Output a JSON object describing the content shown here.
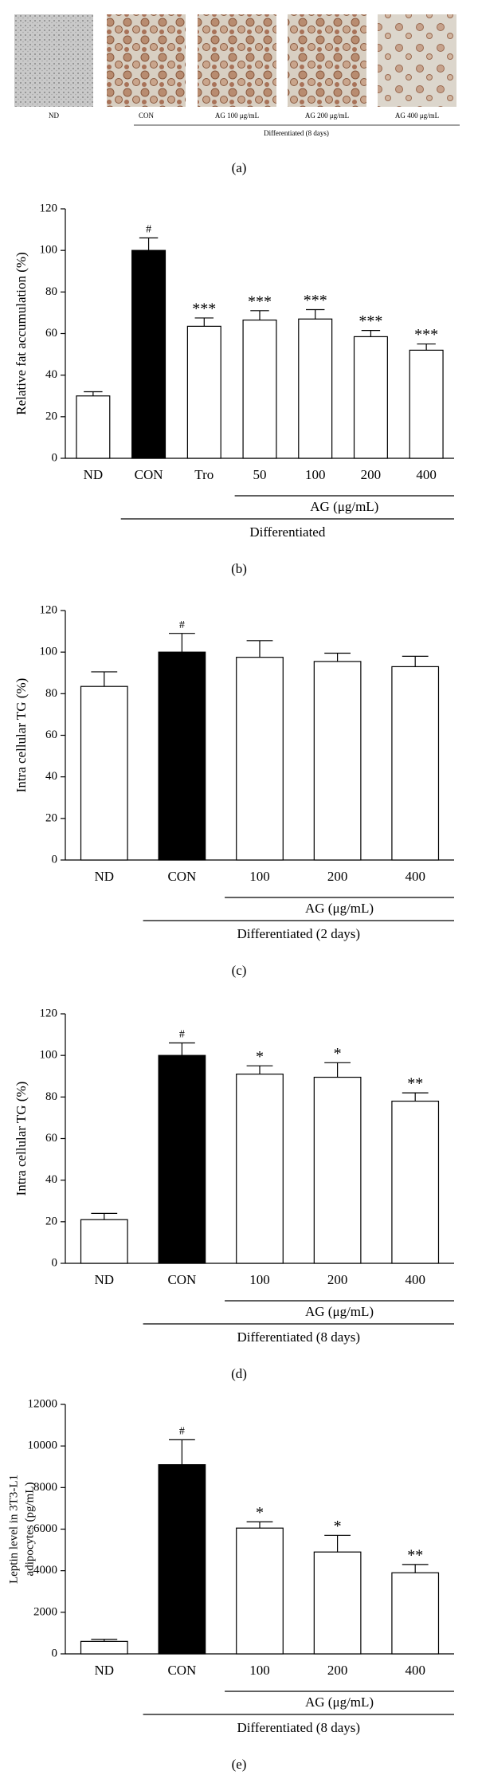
{
  "panel_a": {
    "images": [
      "ND",
      "CON",
      "AG 100 μg/mL",
      "AG 200 μg/mL",
      "AG 400 μg/mL"
    ],
    "group_label": "Differentiated (8 days)",
    "caption": "(a)"
  },
  "chart_data": [
    {
      "type": "bar",
      "caption": "(b)",
      "y_label": [
        "Relative fat accumulation (%)"
      ],
      "categories": [
        "ND",
        "CON",
        "Tro",
        "50",
        "100",
        "200",
        "400"
      ],
      "values": [
        30,
        100,
        63.5,
        66.5,
        67,
        58.5,
        52
      ],
      "errors": [
        2,
        6,
        4,
        4.5,
        4.5,
        3,
        3
      ],
      "colors": [
        "#ffffff",
        "#000000",
        "#ffffff",
        "#ffffff",
        "#ffffff",
        "#ffffff",
        "#ffffff"
      ],
      "annotations": [
        null,
        "#",
        "***",
        "***",
        "***",
        "***",
        "***"
      ],
      "groups": [
        "AG (μg/mL)",
        "Differentiated"
      ],
      "ylim": [
        0,
        120
      ],
      "yticks": [
        0,
        20,
        40,
        60,
        80,
        100,
        120
      ]
    },
    {
      "type": "bar",
      "caption": "(c)",
      "y_label": [
        "Intra cellular TG (%)"
      ],
      "categories": [
        "ND",
        "CON",
        "100",
        "200",
        "400"
      ],
      "values": [
        83.5,
        100,
        97.5,
        95.5,
        93
      ],
      "errors": [
        7,
        9,
        8,
        4,
        5
      ],
      "colors": [
        "#ffffff",
        "#000000",
        "#ffffff",
        "#ffffff",
        "#ffffff"
      ],
      "annotations": [
        null,
        "#",
        null,
        null,
        null
      ],
      "groups": [
        "AG (μg/mL)",
        "Differentiated (2 days)"
      ],
      "ylim": [
        0,
        120
      ],
      "yticks": [
        0,
        20,
        40,
        60,
        80,
        100,
        120
      ]
    },
    {
      "type": "bar",
      "caption": "(d)",
      "y_label": [
        "Intra cellular TG (%)"
      ],
      "categories": [
        "ND",
        "CON",
        "100",
        "200",
        "400"
      ],
      "values": [
        21,
        100,
        91,
        89.5,
        78
      ],
      "errors": [
        3,
        6,
        4,
        7,
        4
      ],
      "colors": [
        "#ffffff",
        "#000000",
        "#ffffff",
        "#ffffff",
        "#ffffff"
      ],
      "annotations": [
        null,
        "#",
        "*",
        "*",
        "**"
      ],
      "groups": [
        "AG (μg/mL)",
        "Differentiated (8 days)"
      ],
      "ylim": [
        0,
        120
      ],
      "yticks": [
        0,
        20,
        40,
        60,
        80,
        100,
        120
      ]
    },
    {
      "type": "bar",
      "caption": "(e)",
      "y_label": [
        "Leptin level in 3T3-L1",
        "adipocytes (pg/mL)"
      ],
      "categories": [
        "ND",
        "CON",
        "100",
        "200",
        "400"
      ],
      "values": [
        600,
        9100,
        6050,
        4900,
        3900
      ],
      "errors": [
        100,
        1200,
        300,
        800,
        400
      ],
      "colors": [
        "#ffffff",
        "#000000",
        "#ffffff",
        "#ffffff",
        "#ffffff"
      ],
      "annotations": [
        null,
        "#",
        "*",
        "*",
        "**"
      ],
      "groups": [
        "AG (μg/mL)",
        "Differentiated (8 days)"
      ],
      "ylim": [
        0,
        12000
      ],
      "yticks": [
        0,
        2000,
        4000,
        6000,
        8000,
        10000,
        12000
      ]
    }
  ]
}
